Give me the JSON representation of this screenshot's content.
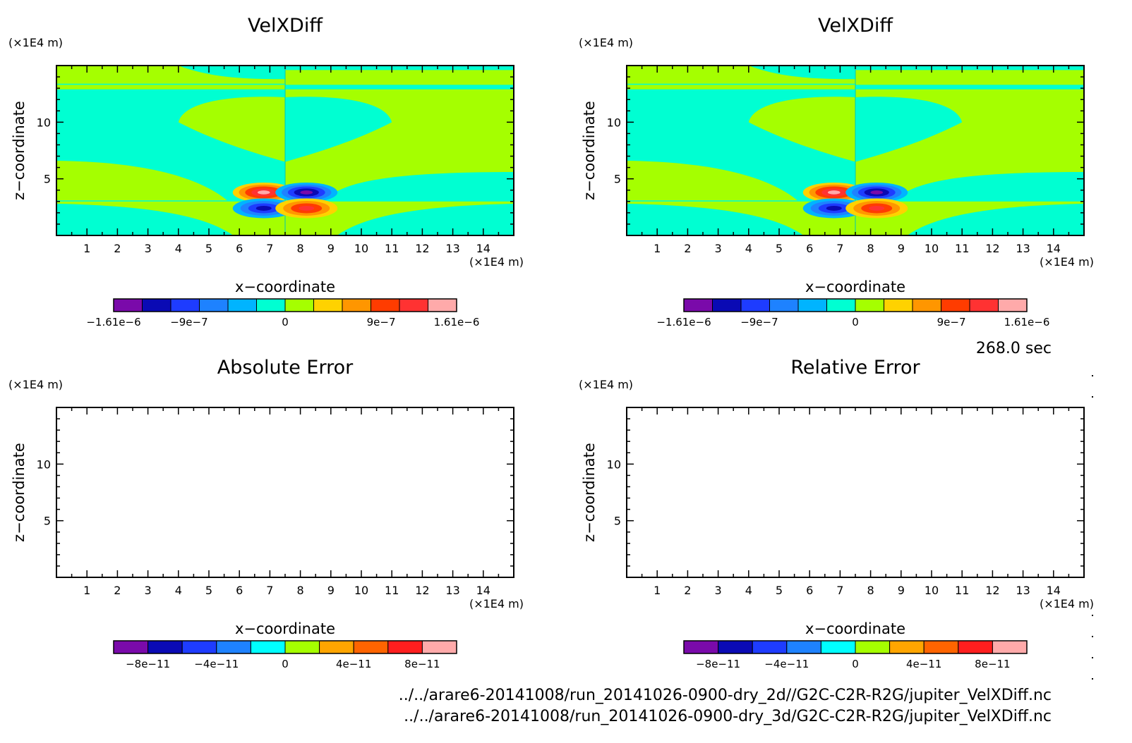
{
  "time_label": "268.0 sec",
  "footer": {
    "file_2d": "../../arare6-20141008/run_20141026-0900-dry_2d//G2C-C2R-R2G/jupiter_VelXDiff.nc",
    "file_3d": "../../arare6-20141008/run_20141026-0900-dry_3d/G2C-C2R-R2G/jupiter_VelXDiff.nc"
  },
  "colors": {
    "velx_levels": [
      "#7a0aaa",
      "#0a0ab4",
      "#1e3cff",
      "#1e82ff",
      "#00b4ff",
      "#00ffd2",
      "#a5ff00",
      "#ffd200",
      "#ff9600",
      "#ff3c00",
      "#ff3232",
      "#ffaaaa"
    ],
    "error_levels": [
      "#7a0aaa",
      "#0a0ab4",
      "#1e3cff",
      "#1e82ff",
      "#00ffff",
      "#a5ff00",
      "#ffa500",
      "#ff6400",
      "#ff1e1e",
      "#ffaaaa"
    ]
  },
  "chart_data": [
    {
      "type": "heatmap",
      "title": "VelXDiff",
      "xlabel": "x−coordinate",
      "ylabel": "z−coordinate",
      "x_unit": "(×1E4 m)",
      "y_unit": "(×1E4 m)",
      "xlim": [
        0,
        15
      ],
      "ylim": [
        0,
        15
      ],
      "xticks": [
        "1",
        "2",
        "3",
        "4",
        "5",
        "6",
        "7",
        "8",
        "9",
        "10",
        "11",
        "12",
        "13",
        "14"
      ],
      "yticks": [
        "5",
        "10"
      ],
      "colorbar_ticks": [
        "−1.61e−6",
        "−9e−7",
        "0",
        "9e−7",
        "1.61e−6"
      ],
      "extrema": [
        {
          "x": 6.8,
          "z": 3.8,
          "value": 1.61e-06
        },
        {
          "x": 8.2,
          "z": 3.8,
          "value": -1.61e-06
        },
        {
          "x": 6.8,
          "z": 2.4,
          "value": -1.2e-06
        },
        {
          "x": 8.2,
          "z": 2.4,
          "value": 1.2e-06
        }
      ]
    },
    {
      "type": "heatmap",
      "title": "VelXDiff",
      "xlabel": "x−coordinate",
      "ylabel": "z−coordinate",
      "x_unit": "(×1E4 m)",
      "y_unit": "(×1E4 m)",
      "xlim": [
        0,
        15
      ],
      "ylim": [
        0,
        15
      ],
      "xticks": [
        "1",
        "2",
        "3",
        "4",
        "5",
        "6",
        "7",
        "8",
        "9",
        "10",
        "11",
        "12",
        "13",
        "14"
      ],
      "yticks": [
        "5",
        "10"
      ],
      "colorbar_ticks": [
        "−1.61e−6",
        "−9e−7",
        "0",
        "9e−7",
        "1.61e−6"
      ],
      "extrema": [
        {
          "x": 6.8,
          "z": 3.8,
          "value": 1.61e-06
        },
        {
          "x": 8.2,
          "z": 3.8,
          "value": -1.61e-06
        },
        {
          "x": 6.8,
          "z": 2.4,
          "value": -1.2e-06
        },
        {
          "x": 8.2,
          "z": 2.4,
          "value": 1.2e-06
        }
      ]
    },
    {
      "type": "heatmap",
      "title": "Absolute Error",
      "xlabel": "x−coordinate",
      "ylabel": "z−coordinate",
      "x_unit": "(×1E4 m)",
      "y_unit": "(×1E4 m)",
      "xlim": [
        0,
        15
      ],
      "ylim": [
        0,
        15
      ],
      "xticks": [
        "1",
        "2",
        "3",
        "4",
        "5",
        "6",
        "7",
        "8",
        "9",
        "10",
        "11",
        "12",
        "13",
        "14"
      ],
      "yticks": [
        "5",
        "10"
      ],
      "colorbar_ticks": [
        "−8e−11",
        "−4e−11",
        "0",
        "4e−11",
        "8e−11"
      ],
      "extrema": []
    },
    {
      "type": "heatmap",
      "title": "Relative Error",
      "xlabel": "x−coordinate",
      "ylabel": "z−coordinate",
      "x_unit": "(×1E4 m)",
      "y_unit": "(×1E4 m)",
      "xlim": [
        0,
        15
      ],
      "ylim": [
        0,
        15
      ],
      "xticks": [
        "1",
        "2",
        "3",
        "4",
        "5",
        "6",
        "7",
        "8",
        "9",
        "10",
        "11",
        "12",
        "13",
        "14"
      ],
      "yticks": [
        "5",
        "10"
      ],
      "colorbar_ticks": [
        "−8e−11",
        "−4e−11",
        "0",
        "4e−11",
        "8e−11"
      ],
      "extrema": []
    }
  ]
}
